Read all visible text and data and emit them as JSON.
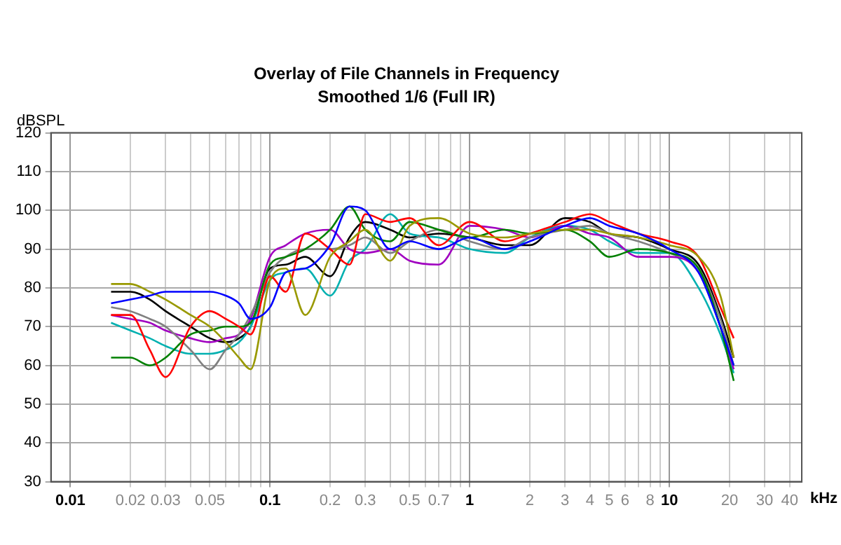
{
  "chart_data": {
    "type": "line",
    "title": "Overlay of File Channels in Frequency",
    "subtitle": "Smoothed 1/6 (Full IR)",
    "xlabel": "kHz",
    "ylabel": "dBSPL",
    "log": "x",
    "grid": true,
    "legend": false,
    "marker": "none",
    "line_style": "solid",
    "x": [
      0.016,
      0.02,
      0.025,
      0.03,
      0.04,
      0.05,
      0.06,
      0.07,
      0.08,
      0.1,
      0.12,
      0.15,
      0.2,
      0.25,
      0.3,
      0.4,
      0.5,
      0.7,
      1,
      1.5,
      2,
      3,
      4,
      5,
      7,
      10,
      14,
      18,
      21
    ],
    "xlim": [
      0.008,
      46
    ],
    "xticks": [
      0.01,
      0.02,
      0.03,
      {
        "value": 0.04,
        "label": null
      },
      0.05,
      {
        "value": 0.06,
        "label": null
      },
      {
        "value": 0.07,
        "label": null
      },
      {
        "value": 0.08,
        "label": null
      },
      {
        "value": 0.09,
        "label": null
      },
      0.1,
      0.2,
      0.3,
      {
        "value": 0.4,
        "label": null
      },
      0.5,
      {
        "value": 0.6,
        "label": null
      },
      0.7,
      {
        "value": 0.8,
        "label": null
      },
      {
        "value": 0.9,
        "label": null
      },
      1,
      2,
      3,
      4,
      5,
      6,
      {
        "value": 7,
        "label": null
      },
      8,
      {
        "value": 9,
        "label": null
      },
      10,
      20,
      30,
      40
    ],
    "ylim": [
      30,
      120
    ],
    "yticks": [
      30,
      40,
      50,
      60,
      70,
      80,
      90,
      100,
      110,
      120
    ],
    "series": [
      {
        "color": "#0000ff",
        "values": [
          76,
          77,
          78,
          79,
          79,
          79,
          78,
          76,
          72,
          75,
          84,
          85,
          91,
          101,
          100,
          90,
          92,
          90,
          93,
          90,
          92,
          96,
          98,
          96,
          94,
          90,
          84,
          70,
          60
        ]
      },
      {
        "color": "#999900",
        "values": [
          81,
          81,
          79,
          77,
          73,
          70,
          66,
          62,
          59,
          82,
          85,
          73,
          88,
          92,
          95,
          87,
          96,
          98,
          94,
          93,
          94,
          95,
          95,
          94,
          93,
          91,
          88,
          78,
          62
        ]
      },
      {
        "color": "#ff0000",
        "values": [
          73,
          73,
          64,
          57,
          70,
          74,
          72,
          70,
          68,
          83,
          79,
          94,
          90,
          86,
          99,
          97,
          98,
          91,
          97,
          92,
          94,
          97,
          99,
          97,
          94,
          92,
          88,
          75,
          67
        ]
      },
      {
        "color": "#008000",
        "values": [
          62,
          62,
          60,
          62,
          68,
          69,
          70,
          70,
          71,
          86,
          88,
          90,
          95,
          101,
          95,
          92,
          97,
          95,
          93,
          95,
          94,
          95,
          92,
          88,
          90,
          89,
          85,
          70,
          56
        ]
      },
      {
        "color": "#808080",
        "values": [
          75,
          74,
          72,
          70,
          64,
          59,
          64,
          68,
          73,
          84,
          88,
          90,
          90,
          91,
          93,
          89,
          92,
          95,
          92,
          90,
          93,
          95,
          96,
          94,
          92,
          89,
          85,
          72,
          60
        ]
      },
      {
        "color": "#a000c0",
        "values": [
          73,
          72,
          71,
          69,
          67,
          66,
          67,
          68,
          72,
          88,
          91,
          94,
          95,
          90,
          89,
          90,
          87,
          86,
          96,
          95,
          93,
          96,
          94,
          93,
          88,
          88,
          84,
          70,
          59
        ]
      },
      {
        "color": "#00b0b0",
        "values": [
          71,
          69,
          67,
          65,
          63,
          63,
          64,
          66,
          70,
          82,
          84,
          85,
          78,
          87,
          90,
          99,
          94,
          93,
          90,
          89,
          93,
          96,
          95,
          92,
          89,
          89,
          80,
          68,
          58
        ]
      },
      {
        "color": "#000000",
        "values": [
          79,
          79,
          77,
          74,
          70,
          67,
          66,
          67,
          70,
          85,
          86,
          88,
          83,
          93,
          97,
          95,
          93,
          94,
          93,
          91,
          91,
          98,
          97,
          94,
          93,
          90,
          86,
          73,
          62
        ]
      }
    ]
  }
}
